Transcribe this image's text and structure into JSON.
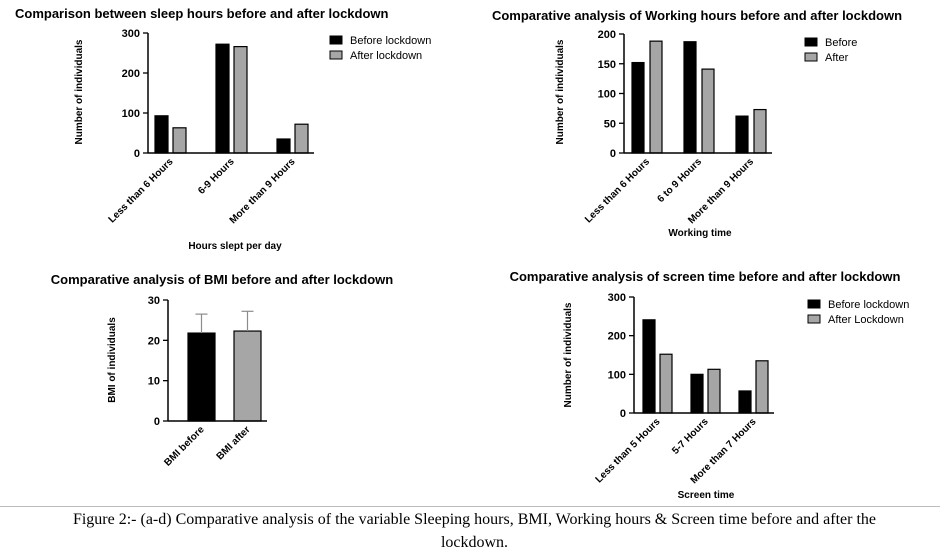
{
  "caption": {
    "line1": "Figure 2:- (a-d) Comparative analysis of the variable Sleeping hours, BMI, Working hours & Screen time before and after the",
    "line2": "lockdown."
  },
  "colors": {
    "before": "#000000",
    "after": "#a6a6a6",
    "axis": "#000000",
    "errorbar": "#8c8c8c"
  },
  "chart_data": [
    {
      "id": "sleep",
      "type": "bar",
      "title": "Comparison between sleep hours before and after lockdown",
      "xlabel": "Hours slept per day",
      "ylabel": "Number of individuals",
      "ylim": [
        0,
        300
      ],
      "yticks": [
        0,
        100,
        200,
        300
      ],
      "categories": [
        "Less than 6 Hours",
        "6-9 Hours",
        "More than 9 Hours"
      ],
      "legend_position": "top-right",
      "series": [
        {
          "name": "Before  lockdown",
          "values": [
            93,
            272,
            35
          ]
        },
        {
          "name": "After lockdown",
          "values": [
            63,
            266,
            72
          ]
        }
      ]
    },
    {
      "id": "work",
      "type": "bar",
      "title": "Comparative analysis of  Working hours before and after lockdown",
      "xlabel": "Working time",
      "ylabel": "Number of individuals",
      "ylim": [
        0,
        200
      ],
      "yticks": [
        0,
        50,
        100,
        150,
        200
      ],
      "categories": [
        "Less than 6 Hours",
        "6 to 9 Hours",
        "More than 9 Hours"
      ],
      "legend_position": "top-right",
      "series": [
        {
          "name": "Before",
          "values": [
            152,
            187,
            62
          ]
        },
        {
          "name": "After",
          "values": [
            188,
            141,
            73
          ]
        }
      ]
    },
    {
      "id": "bmi",
      "type": "bar",
      "title": "Comparative analysis of  BMI before and after lockdown",
      "xlabel": "",
      "ylabel": "BMI of individuals",
      "ylim": [
        0,
        30
      ],
      "yticks": [
        0,
        10,
        20,
        30
      ],
      "categories": [
        "BMI before",
        "BMI after"
      ],
      "values": [
        21.8,
        22.3
      ],
      "error_upper": [
        26.5,
        27.2
      ]
    },
    {
      "id": "screen",
      "type": "bar",
      "title": "Comparative analysis of  screen time before and after lockdown",
      "xlabel": "Screen time",
      "ylabel": "Number of individuals",
      "ylim": [
        0,
        300
      ],
      "yticks": [
        0,
        100,
        200,
        300
      ],
      "categories": [
        "Less than 5 Hours",
        "5-7 Hours",
        "More than 7 Hours"
      ],
      "legend_position": "top-right",
      "series": [
        {
          "name": "Before lockdown",
          "values": [
            241,
            100,
            57
          ]
        },
        {
          "name": "After Lockdown",
          "values": [
            152,
            113,
            135
          ]
        }
      ]
    }
  ]
}
